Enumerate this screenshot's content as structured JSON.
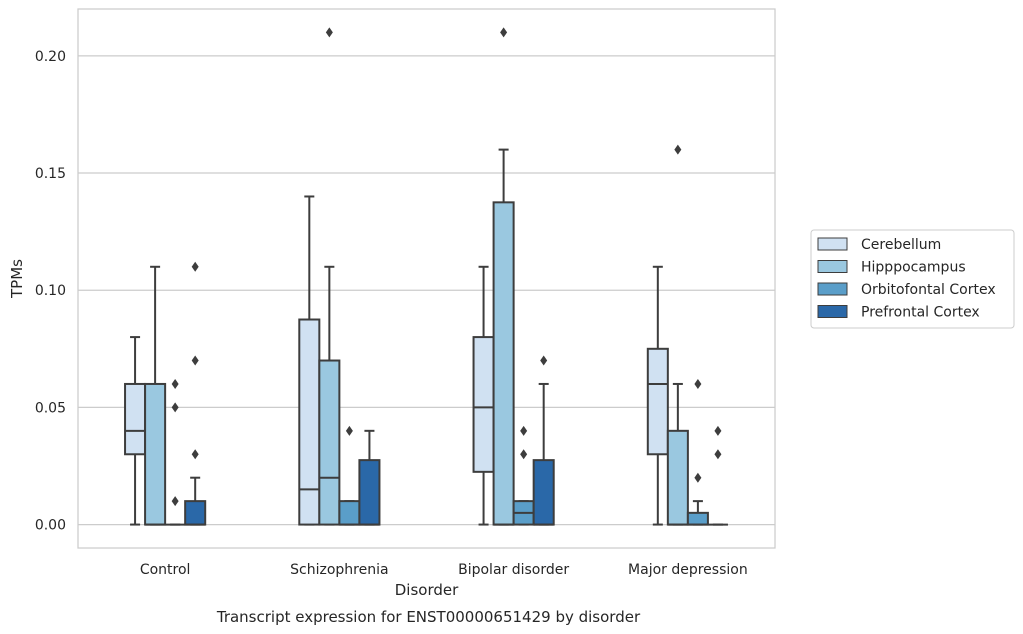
{
  "chart_data": {
    "type": "boxplot",
    "caption": "Transcript expression for ENST00000651429 by disorder",
    "xlabel": "Disorder",
    "ylabel": "TPMs",
    "ylim": [
      -0.01,
      0.22
    ],
    "yticks": [
      0.0,
      0.05,
      0.1,
      0.15,
      0.2
    ],
    "ytick_labels": [
      "0.00",
      "0.05",
      "0.10",
      "0.15",
      "0.20"
    ],
    "grid": "horizontal",
    "legend_position": "right",
    "categories": [
      "Control",
      "Schizophrenia",
      "Bipolar disorder",
      "Major depression"
    ],
    "series": [
      {
        "name": "Cerebellum",
        "color": "#d0e1f2",
        "boxes": [
          {
            "min": 0.0,
            "q1": 0.03,
            "median": 0.04,
            "q3": 0.06,
            "max": 0.08,
            "outliers": []
          },
          {
            "min": 0.0,
            "q1": 0.0,
            "median": 0.015,
            "q3": 0.0875,
            "max": 0.14,
            "outliers": []
          },
          {
            "min": 0.0,
            "q1": 0.0225,
            "median": 0.05,
            "q3": 0.08,
            "max": 0.11,
            "outliers": []
          },
          {
            "min": 0.0,
            "q1": 0.03,
            "median": 0.06,
            "q3": 0.075,
            "max": 0.11,
            "outliers": []
          }
        ]
      },
      {
        "name": "Hipppocampus",
        "color": "#9ac8e0",
        "boxes": [
          {
            "min": 0.0,
            "q1": 0.0,
            "median": 0.0,
            "q3": 0.06,
            "max": 0.11,
            "outliers": []
          },
          {
            "min": 0.0,
            "q1": 0.0,
            "median": 0.02,
            "q3": 0.07,
            "max": 0.11,
            "outliers": [
              0.21
            ]
          },
          {
            "min": 0.0,
            "q1": 0.0,
            "median": 0.0,
            "q3": 0.1375,
            "max": 0.16,
            "outliers": [
              0.21
            ]
          },
          {
            "min": 0.0,
            "q1": 0.0,
            "median": 0.0,
            "q3": 0.04,
            "max": 0.06,
            "outliers": [
              0.16
            ]
          }
        ]
      },
      {
        "name": "Orbitofontal Cortex",
        "color": "#5a9ec9",
        "boxes": [
          {
            "min": 0.0,
            "q1": 0.0,
            "median": 0.0,
            "q3": 0.0,
            "max": 0.0,
            "outliers": [
              0.01,
              0.05,
              0.06
            ]
          },
          {
            "min": 0.0,
            "q1": 0.0,
            "median": 0.0,
            "q3": 0.01,
            "max": 0.01,
            "outliers": [
              0.04
            ]
          },
          {
            "min": 0.0,
            "q1": 0.0,
            "median": 0.005,
            "q3": 0.01,
            "max": 0.01,
            "outliers": [
              0.03,
              0.04
            ]
          },
          {
            "min": 0.0,
            "q1": 0.0,
            "median": 0.0,
            "q3": 0.005,
            "max": 0.01,
            "outliers": [
              0.02,
              0.06
            ]
          }
        ]
      },
      {
        "name": "Prefrontal Cortex",
        "color": "#2a68a8",
        "boxes": [
          {
            "min": 0.0,
            "q1": 0.0,
            "median": 0.0,
            "q3": 0.01,
            "max": 0.02,
            "outliers": [
              0.03,
              0.07,
              0.11
            ]
          },
          {
            "min": 0.0,
            "q1": 0.0,
            "median": 0.0,
            "q3": 0.0275,
            "max": 0.04,
            "outliers": []
          },
          {
            "min": 0.0,
            "q1": 0.0,
            "median": 0.0,
            "q3": 0.0275,
            "max": 0.06,
            "outliers": [
              0.07
            ]
          },
          {
            "min": 0.0,
            "q1": 0.0,
            "median": 0.0,
            "q3": 0.0,
            "max": 0.0,
            "outliers": [
              0.03,
              0.04
            ]
          }
        ]
      }
    ]
  }
}
